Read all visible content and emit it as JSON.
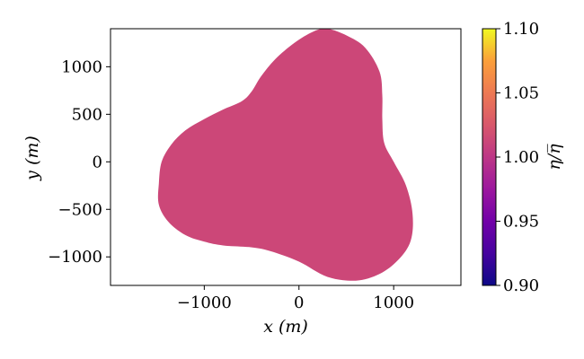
{
  "chart_data": {
    "type": "heatmap",
    "title": "",
    "xlabel": "x (m)",
    "ylabel": "y (m)",
    "xlim": [
      -1990,
      1710
    ],
    "ylim": [
      -1300,
      1400
    ],
    "xticks": [
      -1000,
      0,
      1000
    ],
    "xtick_labels": [
      "−1000",
      "0",
      "1000"
    ],
    "yticks": [
      1000,
      500,
      0,
      -500,
      -1000
    ],
    "ytick_labels": [
      "1000",
      "500",
      "0",
      "−500",
      "−1000"
    ],
    "grid": false,
    "field_value": 1.0,
    "field_color": "#cc4778",
    "colormap": "plasma",
    "colorbar": {
      "label": "η/̄η",
      "label_display": "η/η̅",
      "range": [
        0.9,
        1.1
      ],
      "ticks": [
        1.1,
        1.05,
        1.0,
        0.95,
        0.9
      ],
      "tick_labels": [
        "1.10",
        "1.05",
        "1.00",
        "0.95",
        "0.90"
      ]
    },
    "region_outline": [
      [
        -1480,
        -230
      ],
      [
        -1450,
        0
      ],
      [
        -1350,
        180
      ],
      [
        -1200,
        330
      ],
      [
        -1000,
        450
      ],
      [
        -800,
        550
      ],
      [
        -600,
        640
      ],
      [
        -500,
        740
      ],
      [
        -400,
        900
      ],
      [
        -250,
        1080
      ],
      [
        -50,
        1250
      ],
      [
        150,
        1370
      ],
      [
        300,
        1400
      ],
      [
        500,
        1330
      ],
      [
        700,
        1200
      ],
      [
        850,
        950
      ],
      [
        880,
        700
      ],
      [
        880,
        450
      ],
      [
        900,
        200
      ],
      [
        1000,
        0
      ],
      [
        1130,
        -250
      ],
      [
        1200,
        -550
      ],
      [
        1180,
        -830
      ],
      [
        1050,
        -1030
      ],
      [
        850,
        -1180
      ],
      [
        600,
        -1250
      ],
      [
        300,
        -1210
      ],
      [
        0,
        -1050
      ],
      [
        -300,
        -940
      ],
      [
        -500,
        -900
      ],
      [
        -800,
        -880
      ],
      [
        -1000,
        -840
      ],
      [
        -1200,
        -770
      ],
      [
        -1380,
        -630
      ],
      [
        -1480,
        -450
      ]
    ]
  }
}
